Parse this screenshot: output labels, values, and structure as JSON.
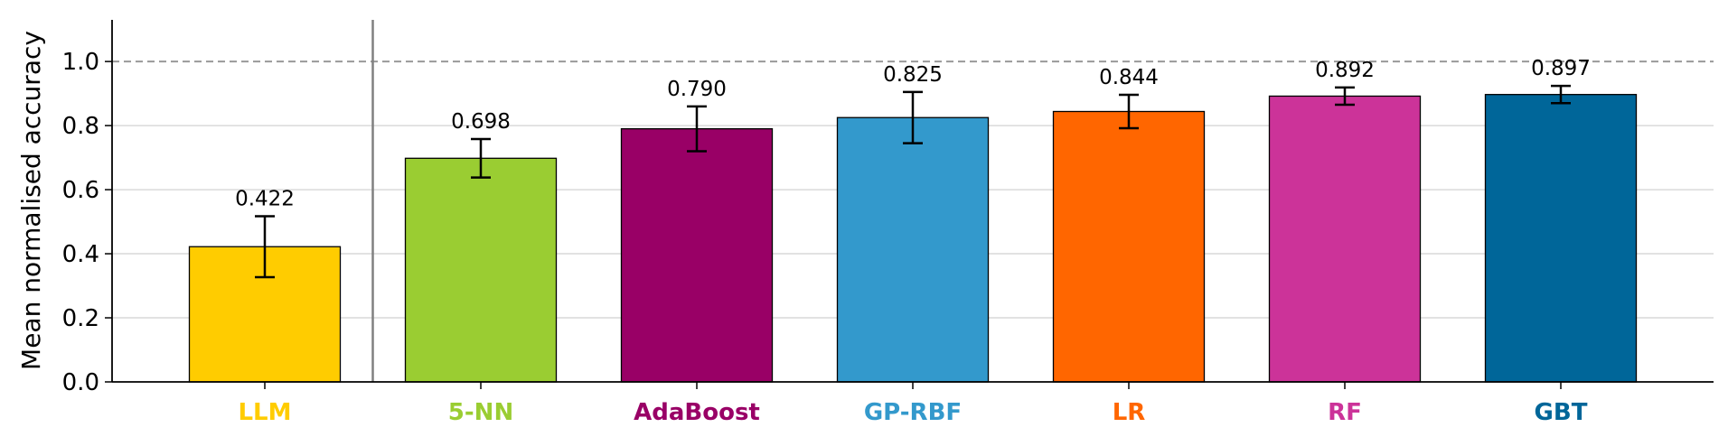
{
  "chart_data": {
    "type": "bar",
    "title": "",
    "xlabel": "",
    "ylabel": "Mean normalised accuracy",
    "ylim": [
      0,
      1.13
    ],
    "yticks": [
      "0.0",
      "0.2",
      "0.4",
      "0.6",
      "0.8",
      "1.0"
    ],
    "grid": "horizontal",
    "reference_line": 1.0,
    "separator_after_index": 0,
    "categories": [
      "LLM",
      "5-NN",
      "AdaBoost",
      "GP-RBF",
      "LR",
      "RF",
      "GBT"
    ],
    "values": [
      0.422,
      0.698,
      0.79,
      0.825,
      0.844,
      0.892,
      0.897
    ],
    "value_labels": [
      "0.422",
      "0.698",
      "0.790",
      "0.825",
      "0.844",
      "0.892",
      "0.897"
    ],
    "error": [
      0.095,
      0.06,
      0.07,
      0.08,
      0.052,
      0.027,
      0.027
    ],
    "colors": [
      "#ffcc00",
      "#9acd32",
      "#990066",
      "#3399cc",
      "#ff6600",
      "#cc3399",
      "#006699"
    ]
  }
}
